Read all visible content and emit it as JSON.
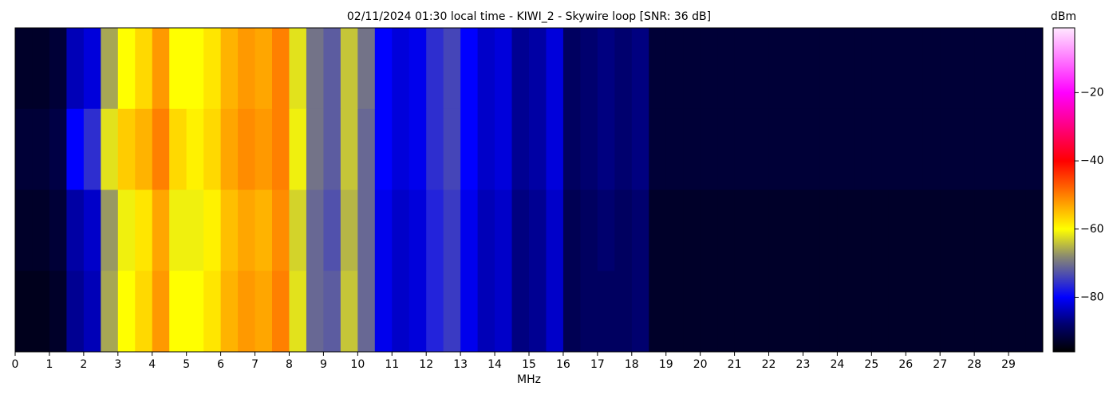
{
  "chart_data": {
    "type": "heatmap",
    "title": "02/11/2024 01:30 local time - KIWI_2 - Skywire loop [SNR: 36 dB]",
    "xlabel": "MHz",
    "colorbar_label": "dBm",
    "xlim": [
      0,
      30
    ],
    "xticks": [
      0,
      1,
      2,
      3,
      4,
      5,
      6,
      7,
      8,
      9,
      10,
      11,
      12,
      13,
      14,
      15,
      16,
      17,
      18,
      19,
      20,
      21,
      22,
      23,
      24,
      25,
      26,
      27,
      28,
      29
    ],
    "zlim": [
      -96,
      -1
    ],
    "zticks": [
      {
        "value": -20,
        "label": "−20"
      },
      {
        "value": -40,
        "label": "−40"
      },
      {
        "value": -60,
        "label": "−60"
      },
      {
        "value": -80,
        "label": "−80"
      }
    ],
    "colormap": [
      {
        "value": -96,
        "color": "#000000"
      },
      {
        "value": -88,
        "color": "#00006e"
      },
      {
        "value": -80,
        "color": "#0000ff"
      },
      {
        "value": -68,
        "color": "#8a8a70"
      },
      {
        "value": -60,
        "color": "#ffff00"
      },
      {
        "value": -40,
        "color": "#ff0000"
      },
      {
        "value": -20,
        "color": "#ff00ff"
      },
      {
        "value": -1,
        "color": "#ffe8ff"
      }
    ],
    "z": [
      [
        -93,
        -93,
        -92,
        -84,
        -82,
        -66,
        -60,
        -57,
        -52,
        -60,
        -60,
        -58,
        -54,
        -52,
        -53,
        -50,
        -62,
        -70,
        -72,
        -64,
        -70,
        -80,
        -82,
        -81,
        -76,
        -74,
        -80,
        -83,
        -82,
        -86,
        -85,
        -82,
        -89,
        -88,
        -87,
        -88,
        -87,
        -92,
        -92,
        -92,
        -92,
        -92,
        -92,
        -92,
        -92,
        -92,
        -92,
        -92,
        -92,
        -92,
        -92,
        -92,
        -92,
        -92,
        -92,
        -92,
        -92,
        -92,
        -92,
        -92
      ],
      [
        -92,
        -92,
        -91,
        -80,
        -76,
        -62,
        -56,
        -54,
        -50,
        -57,
        -59,
        -57,
        -53,
        -51,
        -52,
        -50,
        -61,
        -70,
        -72,
        -64,
        -71,
        -80,
        -82,
        -81,
        -76,
        -74,
        -80,
        -83,
        -82,
        -86,
        -85,
        -82,
        -89,
        -88,
        -87,
        -88,
        -87,
        -92,
        -92,
        -92,
        -92,
        -92,
        -92,
        -92,
        -92,
        -92,
        -92,
        -92,
        -92,
        -92,
        -92,
        -92,
        -92,
        -92,
        -92,
        -92,
        -92,
        -92,
        -92,
        -92
      ],
      [
        -93,
        -93,
        -92,
        -85,
        -83,
        -67,
        -61,
        -58,
        -53,
        -61,
        -61,
        -59,
        -55,
        -53,
        -54,
        -51,
        -63,
        -71,
        -73,
        -65,
        -71,
        -81,
        -83,
        -82,
        -77,
        -75,
        -81,
        -84,
        -83,
        -87,
        -86,
        -83,
        -90,
        -89,
        -88,
        -89,
        -88,
        -93,
        -93,
        -93,
        -93,
        -93,
        -93,
        -93,
        -93,
        -93,
        -93,
        -93,
        -93,
        -93,
        -93,
        -93,
        -93,
        -93,
        -93,
        -93,
        -93,
        -93,
        -93,
        -93
      ],
      [
        -94,
        -94,
        -93,
        -86,
        -84,
        -66,
        -60,
        -57,
        -52,
        -60,
        -60,
        -58,
        -54,
        -52,
        -53,
        -50,
        -62,
        -71,
        -72,
        -64,
        -71,
        -81,
        -83,
        -82,
        -77,
        -75,
        -81,
        -84,
        -83,
        -87,
        -86,
        -83,
        -90,
        -89,
        -89,
        -89,
        -88,
        -93,
        -93,
        -93,
        -93,
        -93,
        -93,
        -93,
        -93,
        -93,
        -93,
        -93,
        -93,
        -93,
        -93,
        -93,
        -93,
        -93,
        -93,
        -93,
        -93,
        -93,
        -93,
        -93
      ]
    ]
  }
}
